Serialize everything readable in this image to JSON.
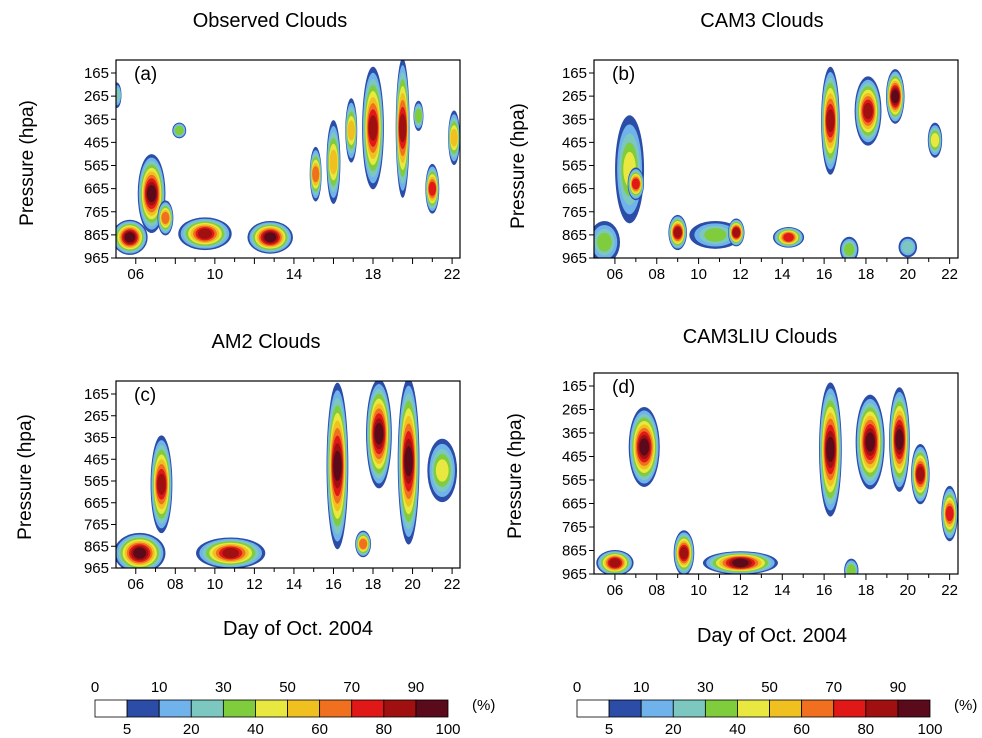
{
  "figure": {
    "xlabel": "Day of Oct. 2004",
    "ylabel": "Pressure (hpa)",
    "colorbar_unit": "(%)"
  },
  "colorbar": {
    "levels": [
      0,
      5,
      10,
      20,
      30,
      40,
      50,
      60,
      70,
      80,
      90,
      100
    ],
    "top_labels": [
      "0",
      "10",
      "30",
      "50",
      "70",
      "90"
    ],
    "bottom_labels": [
      "5",
      "20",
      "40",
      "60",
      "80",
      "100"
    ],
    "colors": [
      "#ffffff",
      "#2b4da8",
      "#6fb2ec",
      "#7cc8c0",
      "#7fcc3c",
      "#e8e840",
      "#f0c020",
      "#f07020",
      "#e01818",
      "#a01010",
      "#5a0a1a"
    ]
  },
  "chart_data": [
    {
      "type": "heatmap",
      "title": "Observed Clouds",
      "panel": "(a)",
      "yticks": [
        165,
        265,
        365,
        465,
        565,
        665,
        765,
        865,
        965
      ],
      "xticks": [
        "06",
        "10",
        "14",
        "18",
        "22"
      ],
      "xlim": [
        5,
        22.4
      ],
      "ylim": [
        965,
        150
      ],
      "blobs": [
        {
          "x": 5.05,
          "y": 295,
          "w": 0.15,
          "h": 80,
          "v": 20
        },
        {
          "x": 5.7,
          "y": 880,
          "w": 1.5,
          "h": 120,
          "v": 95
        },
        {
          "x": 6.8,
          "y": 700,
          "w": 1.1,
          "h": 300,
          "v": 95
        },
        {
          "x": 7.5,
          "y": 800,
          "w": 0.5,
          "h": 120,
          "v": 60
        },
        {
          "x": 8.2,
          "y": 440,
          "w": 0.4,
          "h": 40,
          "v": 30
        },
        {
          "x": 9.5,
          "y": 865,
          "w": 2.4,
          "h": 110,
          "v": 85
        },
        {
          "x": 12.8,
          "y": 880,
          "w": 2.0,
          "h": 110,
          "v": 90
        },
        {
          "x": 15.1,
          "y": 620,
          "w": 0.3,
          "h": 200,
          "v": 60
        },
        {
          "x": 16.0,
          "y": 570,
          "w": 0.4,
          "h": 320,
          "v": 50
        },
        {
          "x": 16.9,
          "y": 440,
          "w": 0.3,
          "h": 240,
          "v": 50
        },
        {
          "x": 18.0,
          "y": 430,
          "w": 0.8,
          "h": 480,
          "v": 85
        },
        {
          "x": 19.5,
          "y": 430,
          "w": 0.4,
          "h": 550,
          "v": 85
        },
        {
          "x": 20.3,
          "y": 380,
          "w": 0.2,
          "h": 100,
          "v": 30
        },
        {
          "x": 21.0,
          "y": 680,
          "w": 0.4,
          "h": 180,
          "v": 75
        },
        {
          "x": 22.1,
          "y": 470,
          "w": 0.3,
          "h": 200,
          "v": 50
        }
      ]
    },
    {
      "type": "heatmap",
      "title": "CAM3 Clouds",
      "panel": "(b)",
      "yticks": [
        165,
        265,
        365,
        465,
        565,
        665,
        765,
        865,
        965
      ],
      "xticks": [
        "06",
        "08",
        "10",
        "12",
        "14",
        "16",
        "18",
        "20",
        "22"
      ],
      "xlim": [
        5,
        22.4
      ],
      "ylim": [
        965,
        150
      ],
      "blobs": [
        {
          "x": 6.7,
          "y": 600,
          "w": 1.1,
          "h": 420,
          "v": 40
        },
        {
          "x": 7.0,
          "y": 660,
          "w": 0.5,
          "h": 110,
          "v": 70
        },
        {
          "x": 5.5,
          "y": 900,
          "w": 1.2,
          "h": 150,
          "v": 30
        },
        {
          "x": 9.0,
          "y": 860,
          "w": 0.6,
          "h": 120,
          "v": 80
        },
        {
          "x": 10.8,
          "y": 870,
          "w": 2.2,
          "h": 90,
          "v": 30
        },
        {
          "x": 11.8,
          "y": 860,
          "w": 0.5,
          "h": 90,
          "v": 80
        },
        {
          "x": 14.3,
          "y": 880,
          "w": 1.2,
          "h": 60,
          "v": 70
        },
        {
          "x": 16.3,
          "y": 400,
          "w": 0.6,
          "h": 420,
          "v": 85
        },
        {
          "x": 18.1,
          "y": 360,
          "w": 1.0,
          "h": 260,
          "v": 85
        },
        {
          "x": 19.4,
          "y": 300,
          "w": 0.6,
          "h": 200,
          "v": 90
        },
        {
          "x": 21.3,
          "y": 480,
          "w": 0.4,
          "h": 120,
          "v": 40
        },
        {
          "x": 17.2,
          "y": 930,
          "w": 0.6,
          "h": 80,
          "v": 30
        },
        {
          "x": 20.0,
          "y": 920,
          "w": 0.6,
          "h": 60,
          "v": 25
        }
      ]
    },
    {
      "type": "heatmap",
      "title": "AM2 Clouds",
      "panel": "(c)",
      "yticks": [
        165,
        265,
        365,
        465,
        565,
        665,
        765,
        865,
        965
      ],
      "xticks": [
        "06",
        "08",
        "10",
        "12",
        "14",
        "16",
        "18",
        "20",
        "22"
      ],
      "xlim": [
        5,
        22.4
      ],
      "ylim": [
        965,
        150
      ],
      "blobs": [
        {
          "x": 6.2,
          "y": 900,
          "w": 2.3,
          "h": 150,
          "v": 90
        },
        {
          "x": 7.3,
          "y": 600,
          "w": 0.8,
          "h": 400,
          "v": 80
        },
        {
          "x": 10.8,
          "y": 900,
          "w": 3.2,
          "h": 110,
          "v": 80
        },
        {
          "x": 16.2,
          "y": 520,
          "w": 0.8,
          "h": 700,
          "v": 95
        },
        {
          "x": 18.3,
          "y": 380,
          "w": 1.0,
          "h": 450,
          "v": 95
        },
        {
          "x": 19.8,
          "y": 500,
          "w": 0.8,
          "h": 700,
          "v": 95
        },
        {
          "x": 21.5,
          "y": 540,
          "w": 1.2,
          "h": 250,
          "v": 40
        },
        {
          "x": 17.5,
          "y": 860,
          "w": 0.5,
          "h": 90,
          "v": 60
        }
      ]
    },
    {
      "type": "heatmap",
      "title": "CAM3LIU Clouds",
      "panel": "(d)",
      "yticks": [
        165,
        265,
        365,
        465,
        565,
        665,
        765,
        865,
        965
      ],
      "xticks": [
        "06",
        "08",
        "10",
        "12",
        "14",
        "16",
        "18",
        "20",
        "22"
      ],
      "xlim": [
        5,
        22.4
      ],
      "ylim": [
        965,
        150
      ],
      "blobs": [
        {
          "x": 7.4,
          "y": 450,
          "w": 1.2,
          "h": 300,
          "v": 98
        },
        {
          "x": 6.0,
          "y": 920,
          "w": 1.5,
          "h": 80,
          "v": 85
        },
        {
          "x": 9.3,
          "y": 880,
          "w": 0.7,
          "h": 160,
          "v": 80
        },
        {
          "x": 12.0,
          "y": 920,
          "w": 3.3,
          "h": 70,
          "v": 90
        },
        {
          "x": 16.3,
          "y": 460,
          "w": 0.8,
          "h": 520,
          "v": 98
        },
        {
          "x": 18.2,
          "y": 430,
          "w": 1.1,
          "h": 360,
          "v": 98
        },
        {
          "x": 19.6,
          "y": 420,
          "w": 0.7,
          "h": 400,
          "v": 95
        },
        {
          "x": 20.6,
          "y": 560,
          "w": 0.6,
          "h": 220,
          "v": 80
        },
        {
          "x": 22.0,
          "y": 720,
          "w": 0.5,
          "h": 200,
          "v": 75
        },
        {
          "x": 17.3,
          "y": 950,
          "w": 0.4,
          "h": 70,
          "v": 30
        }
      ]
    }
  ]
}
